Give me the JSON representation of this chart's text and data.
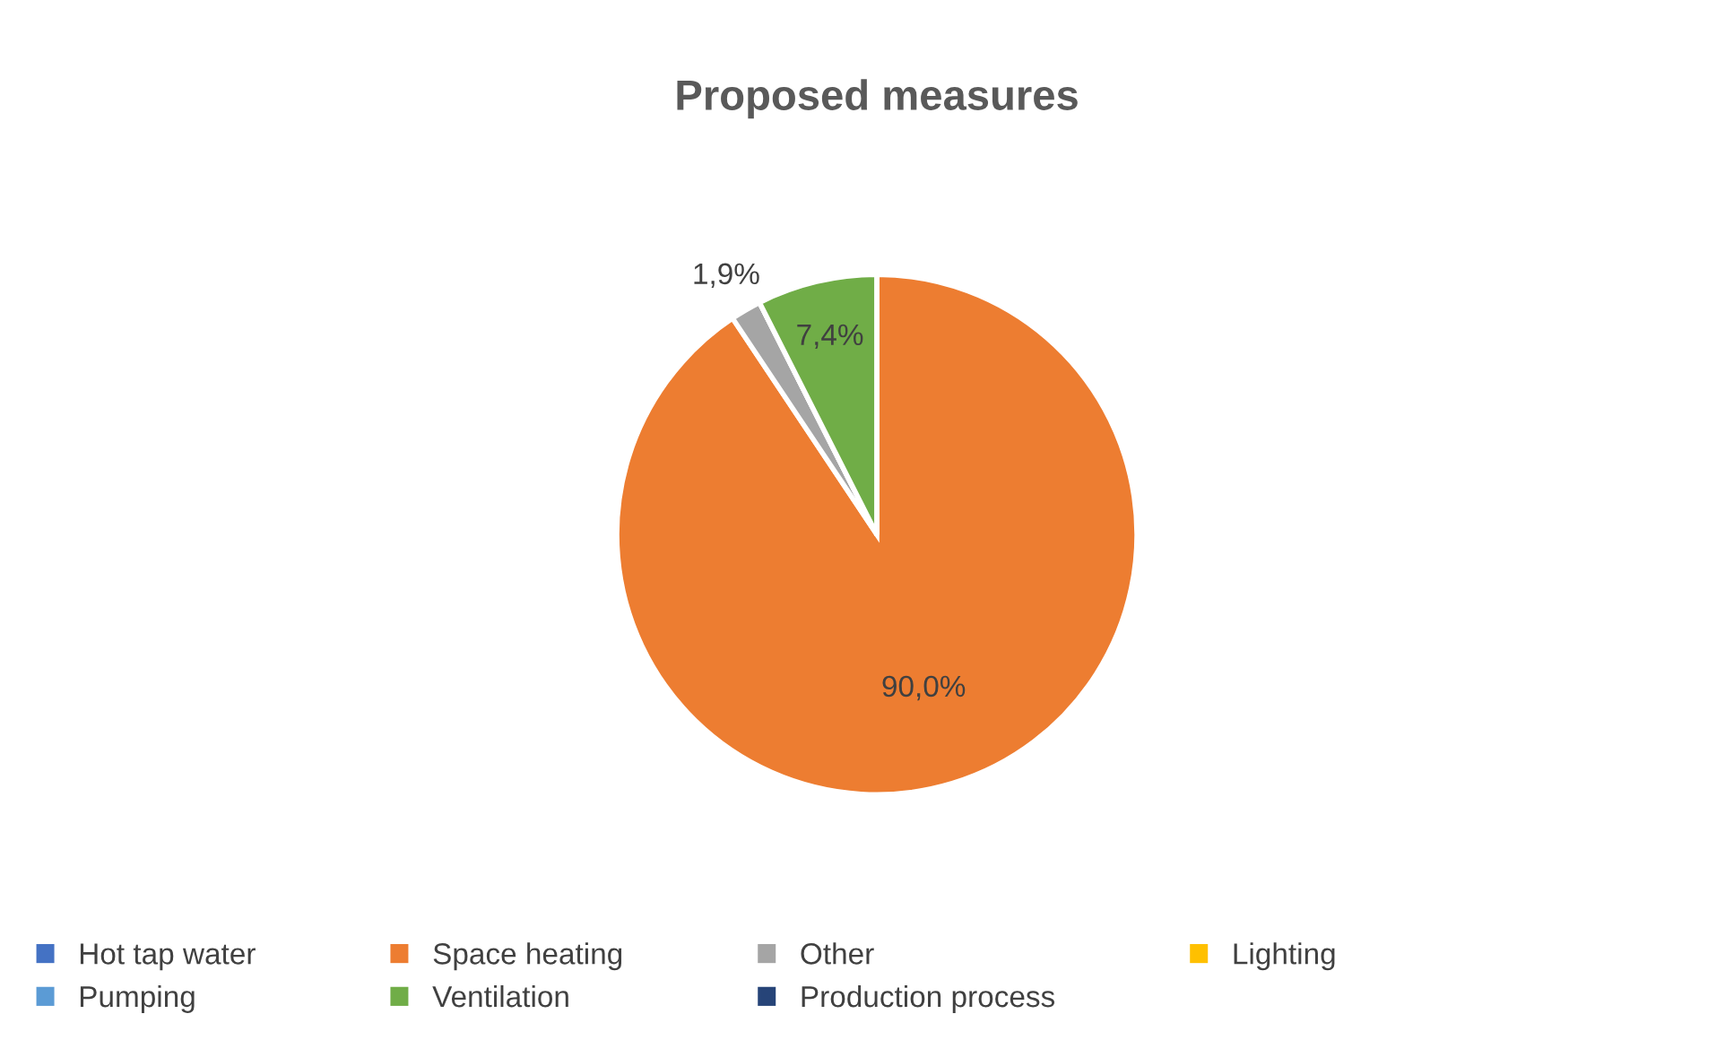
{
  "chart_data": {
    "type": "pie",
    "title": "Proposed measures",
    "categories": [
      "Hot tap water",
      "Space heating",
      "Other",
      "Lighting",
      "Pumping",
      "Ventilation",
      "Production process"
    ],
    "values": [
      0,
      90.0,
      1.9,
      0,
      0,
      7.4,
      0
    ],
    "value_labels": [
      null,
      "90,0%",
      "1,9%",
      null,
      null,
      "7,4%",
      null
    ],
    "colors": [
      "#4472c4",
      "#ed7d31",
      "#a5a5a5",
      "#ffc000",
      "#5b9bd5",
      "#70ad47",
      "#264478"
    ],
    "legend": "bottom"
  }
}
